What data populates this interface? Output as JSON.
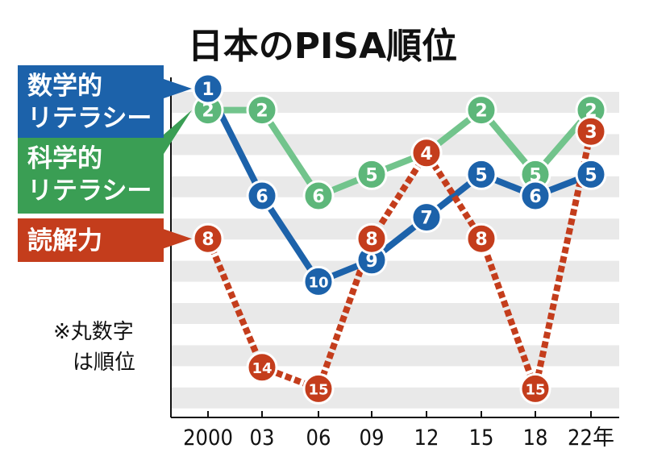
{
  "chart_data": {
    "type": "line",
    "title": "日本のPISA順位",
    "categories": [
      "2000",
      "03",
      "06",
      "09",
      "12",
      "15",
      "18",
      "22年"
    ],
    "ylim": [
      1,
      15
    ],
    "y_inverted": true,
    "grid": "horizontal bands",
    "series": [
      {
        "name": "数学的リテラシー",
        "legend_lines": [
          "数学的",
          "リテラシー"
        ],
        "color": "#1c62aa",
        "line_style": "solid",
        "values": [
          1,
          6,
          10,
          9,
          7,
          5,
          6,
          5
        ]
      },
      {
        "name": "科学的リテラシー",
        "legend_lines": [
          "科学的",
          "リテラシー"
        ],
        "color": "#3a9e54",
        "line_color": "#72c48c",
        "marker_color": "#5db77a",
        "line_style": "solid",
        "values": [
          2,
          2,
          6,
          5,
          4,
          2,
          5,
          2
        ]
      },
      {
        "name": "読解力",
        "legend_lines": [
          "読解力"
        ],
        "color": "#c43d1c",
        "line_style": "dotted",
        "values": [
          8,
          14,
          15,
          8,
          4,
          8,
          15,
          3
        ]
      }
    ],
    "annotation_lines": [
      "※丸数字",
      "は順位"
    ]
  },
  "colors": {
    "band": "#e9e9e9",
    "axis": "#111111"
  }
}
